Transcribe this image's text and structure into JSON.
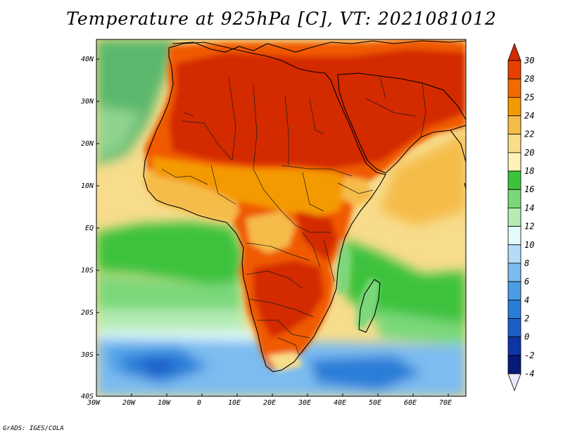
{
  "title": "Temperature at 925hPa [C], VT: 2021081012",
  "credit": "GrADS: IGES/COLA",
  "lon_labels": [
    "30W",
    "20W",
    "10W",
    "0",
    "10E",
    "20E",
    "30E",
    "40E",
    "50E",
    "60E",
    "70E"
  ],
  "lat_labels": [
    "40N",
    "30N",
    "20N",
    "10N",
    "EQ",
    "10S",
    "20S",
    "30S",
    "40S"
  ],
  "map_extent": {
    "lon_min": -30,
    "lon_max": 75,
    "lat_min": -40,
    "lat_max": 45
  },
  "colorbar": {
    "levels": [
      "30",
      "28",
      "25",
      "24",
      "22",
      "20",
      "18",
      "16",
      "14",
      "12",
      "10",
      "8",
      "6",
      "4",
      "2",
      "0",
      "-2",
      "-4"
    ],
    "colors": [
      "#d42a00",
      "#e84000",
      "#f26a00",
      "#f49a00",
      "#f6bc48",
      "#f9dd88",
      "#fdf3b8",
      "#3cc23c",
      "#7ad87a",
      "#b4ecb4",
      "#e4fbfb",
      "#b4dcf8",
      "#7cbcf0",
      "#4c9ee4",
      "#2b7ed8",
      "#1a5fc8",
      "#0d35a8",
      "#061a78",
      "#e8e8f8"
    ]
  },
  "palette": {
    "ocean_cool": "#5ab86c",
    "ocean_warm": "#f7dc8c",
    "land_hot": "#d42a00",
    "land_warm": "#f05a00",
    "south_cold": "#4ea8e6",
    "deep_cold": "#1f6ed0"
  }
}
